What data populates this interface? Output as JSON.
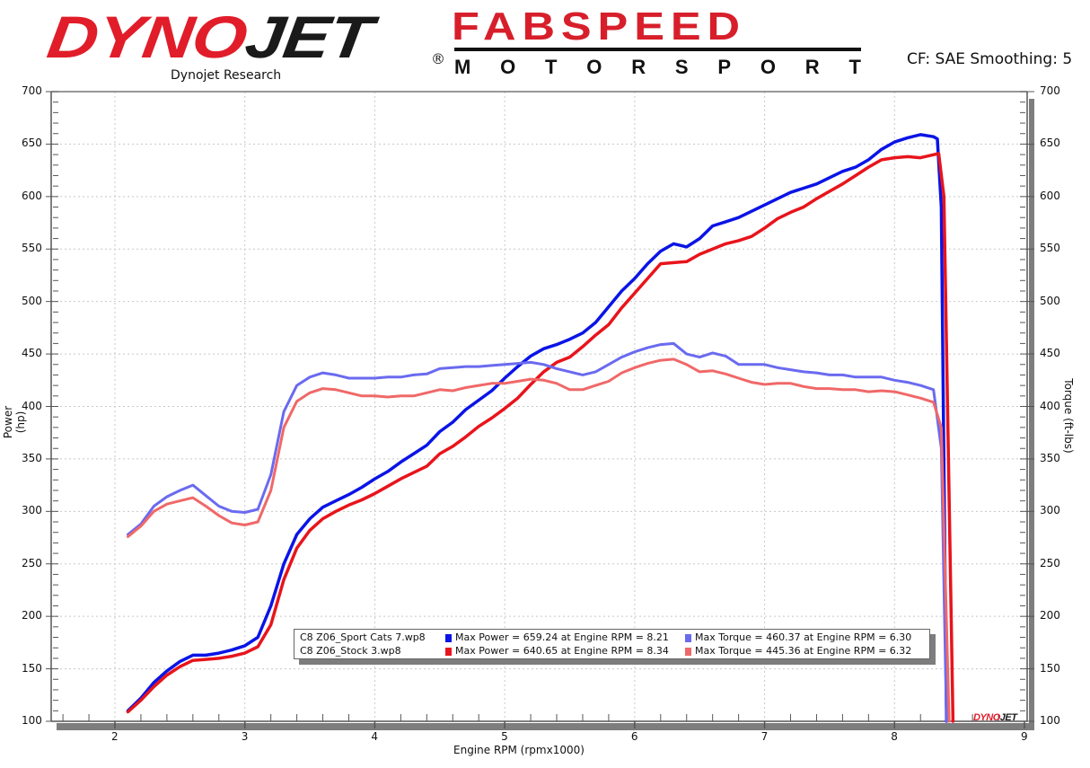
{
  "header": {
    "logo_left": {
      "part1": "DYNO",
      "part2": "JET",
      "registered": "®"
    },
    "logo_left_subtitle": "Dynojet Research",
    "logo_right": {
      "top": "FABSPEED",
      "bottom_letters": [
        "M",
        "O",
        "T",
        "O",
        "R",
        "S",
        "P",
        "O",
        "R",
        "T"
      ]
    },
    "settings_text": "CF: SAE Smoothing: 5"
  },
  "watermark": {
    "part1": "DYNO",
    "part2": "JET"
  },
  "legend": {
    "rows": [
      {
        "file": "C8 Z06_Sport Cats 7.wp8",
        "power_text": "Max Power = 659.24 at Engine RPM = 8.21",
        "torque_text": "Max Torque = 460.37 at Engine RPM = 6.30",
        "power_color": "#0a14e6",
        "torque_color": "#6a6af0"
      },
      {
        "file": "C8 Z06_Stock 3.wp8",
        "power_text": "Max Power = 640.65 at Engine RPM = 8.34",
        "torque_text": "Max Torque = 445.36 at Engine RPM = 6.32",
        "power_color": "#e8141c",
        "torque_color": "#f06868"
      }
    ]
  },
  "chart_data": {
    "type": "line",
    "title": "",
    "xlabel": "Engine RPM (rpmx1000)",
    "ylabel": "Power (hp)",
    "ylabel_right": "Torque (ft-lbs)",
    "xlim": [
      1.55,
      9.1
    ],
    "ylim": [
      100,
      700
    ],
    "ylim_right": [
      100,
      700
    ],
    "x_ticks": [
      2,
      3,
      4,
      5,
      6,
      7,
      8,
      9
    ],
    "y_ticks": [
      100,
      150,
      200,
      250,
      300,
      350,
      400,
      450,
      500,
      550,
      600,
      650,
      700
    ],
    "grid": true,
    "legend_position": "bottom-center inside plot",
    "series": [
      {
        "name": "C8 Z06_Sport Cats 7.wp8 - Power",
        "color": "#0a14e6",
        "x": [
          2.1,
          2.2,
          2.3,
          2.4,
          2.5,
          2.6,
          2.7,
          2.8,
          2.9,
          3.0,
          3.1,
          3.2,
          3.3,
          3.4,
          3.5,
          3.6,
          3.7,
          3.8,
          3.9,
          4.0,
          4.1,
          4.2,
          4.3,
          4.4,
          4.5,
          4.6,
          4.7,
          4.8,
          4.9,
          5.0,
          5.1,
          5.2,
          5.3,
          5.4,
          5.5,
          5.6,
          5.7,
          5.8,
          5.9,
          6.0,
          6.1,
          6.2,
          6.3,
          6.4,
          6.5,
          6.6,
          6.7,
          6.8,
          6.9,
          7.0,
          7.1,
          7.2,
          7.3,
          7.4,
          7.5,
          7.6,
          7.7,
          7.8,
          7.9,
          8.0,
          8.1,
          8.2,
          8.3,
          8.33,
          8.36,
          8.4
        ],
        "values": [
          110,
          122,
          137,
          148,
          157,
          163,
          163,
          165,
          168,
          172,
          180,
          210,
          250,
          278,
          293,
          304,
          310,
          316,
          323,
          331,
          338,
          347,
          355,
          363,
          376,
          385,
          397,
          406,
          415,
          427,
          438,
          448,
          455,
          459,
          464,
          470,
          480,
          495,
          510,
          522,
          536,
          548,
          555,
          552,
          560,
          572,
          576,
          580,
          586,
          592,
          598,
          604,
          608,
          612,
          618,
          624,
          628,
          635,
          645,
          652,
          656,
          659,
          657,
          655,
          590,
          100
        ]
      },
      {
        "name": "C8 Z06_Stock 3.wp8 - Power",
        "color": "#e8141c",
        "x": [
          2.1,
          2.2,
          2.3,
          2.4,
          2.5,
          2.6,
          2.7,
          2.8,
          2.9,
          3.0,
          3.1,
          3.2,
          3.3,
          3.4,
          3.5,
          3.6,
          3.7,
          3.8,
          3.9,
          4.0,
          4.1,
          4.2,
          4.3,
          4.4,
          4.5,
          4.6,
          4.7,
          4.8,
          4.9,
          5.0,
          5.1,
          5.2,
          5.3,
          5.4,
          5.5,
          5.6,
          5.7,
          5.8,
          5.9,
          6.0,
          6.1,
          6.2,
          6.3,
          6.4,
          6.5,
          6.6,
          6.7,
          6.8,
          6.9,
          7.0,
          7.1,
          7.2,
          7.3,
          7.4,
          7.5,
          7.6,
          7.7,
          7.8,
          7.9,
          8.0,
          8.1,
          8.2,
          8.34,
          8.38,
          8.45
        ],
        "values": [
          109,
          120,
          133,
          144,
          152,
          158,
          159,
          160,
          162,
          165,
          171,
          192,
          235,
          265,
          282,
          293,
          300,
          306,
          311,
          317,
          324,
          331,
          337,
          343,
          355,
          362,
          371,
          381,
          389,
          398,
          408,
          421,
          433,
          442,
          447,
          457,
          468,
          478,
          494,
          508,
          522,
          536,
          537,
          538,
          545,
          550,
          555,
          558,
          562,
          570,
          579,
          585,
          590,
          598,
          605,
          612,
          620,
          628,
          635,
          637,
          638,
          637,
          641,
          600,
          100
        ]
      },
      {
        "name": "C8 Z06_Sport Cats 7.wp8 - Torque",
        "color": "#6a6af0",
        "x": [
          2.1,
          2.2,
          2.3,
          2.4,
          2.5,
          2.6,
          2.7,
          2.8,
          2.9,
          3.0,
          3.1,
          3.2,
          3.3,
          3.4,
          3.5,
          3.6,
          3.7,
          3.8,
          3.9,
          4.0,
          4.1,
          4.2,
          4.3,
          4.4,
          4.5,
          4.6,
          4.7,
          4.8,
          4.9,
          5.0,
          5.1,
          5.2,
          5.3,
          5.4,
          5.5,
          5.6,
          5.7,
          5.8,
          5.9,
          6.0,
          6.1,
          6.2,
          6.3,
          6.4,
          6.5,
          6.6,
          6.7,
          6.8,
          6.9,
          7.0,
          7.1,
          7.2,
          7.3,
          7.4,
          7.5,
          7.6,
          7.7,
          7.8,
          7.9,
          8.0,
          8.1,
          8.2,
          8.3,
          8.36,
          8.4
        ],
        "values": [
          278,
          288,
          305,
          314,
          320,
          325,
          315,
          305,
          300,
          299,
          302,
          335,
          395,
          420,
          428,
          432,
          430,
          427,
          427,
          427,
          428,
          428,
          430,
          431,
          436,
          437,
          438,
          438,
          439,
          440,
          441,
          442,
          440,
          436,
          433,
          430,
          433,
          440,
          447,
          452,
          456,
          459,
          460,
          450,
          447,
          451,
          448,
          440,
          440,
          440,
          437,
          435,
          433,
          432,
          430,
          430,
          428,
          428,
          428,
          425,
          423,
          420,
          416,
          360,
          100
        ]
      },
      {
        "name": "C8 Z06_Stock 3.wp8 - Torque",
        "color": "#f06868",
        "x": [
          2.1,
          2.2,
          2.3,
          2.4,
          2.5,
          2.6,
          2.7,
          2.8,
          2.9,
          3.0,
          3.1,
          3.2,
          3.3,
          3.4,
          3.5,
          3.6,
          3.7,
          3.8,
          3.9,
          4.0,
          4.1,
          4.2,
          4.3,
          4.4,
          4.5,
          4.6,
          4.7,
          4.8,
          4.9,
          5.0,
          5.1,
          5.2,
          5.3,
          5.4,
          5.5,
          5.6,
          5.7,
          5.8,
          5.9,
          6.0,
          6.1,
          6.2,
          6.3,
          6.4,
          6.5,
          6.6,
          6.7,
          6.8,
          6.9,
          7.0,
          7.1,
          7.2,
          7.3,
          7.4,
          7.5,
          7.6,
          7.7,
          7.8,
          7.9,
          8.0,
          8.1,
          8.2,
          8.3,
          8.36,
          8.42
        ],
        "values": [
          276,
          286,
          300,
          307,
          310,
          313,
          305,
          296,
          289,
          287,
          290,
          320,
          380,
          405,
          413,
          417,
          416,
          413,
          410,
          410,
          409,
          410,
          410,
          413,
          416,
          415,
          418,
          420,
          422,
          422,
          424,
          426,
          425,
          422,
          416,
          416,
          420,
          424,
          432,
          437,
          441,
          444,
          445,
          440,
          433,
          434,
          431,
          427,
          423,
          421,
          422,
          422,
          419,
          417,
          417,
          416,
          416,
          414,
          415,
          414,
          411,
          408,
          404,
          380,
          100
        ]
      }
    ]
  }
}
